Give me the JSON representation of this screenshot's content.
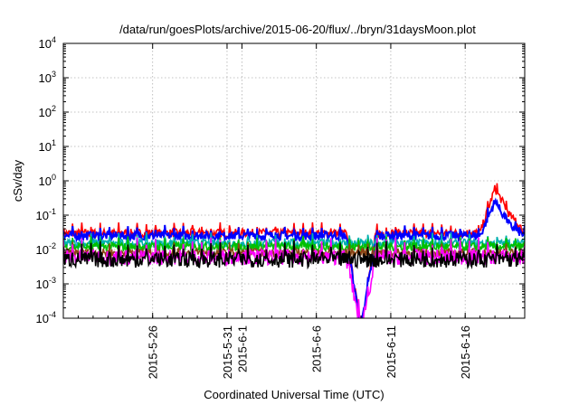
{
  "chart_data": {
    "type": "line",
    "title": "/data/run/goesPlots/archive/2015-06-20/flux/../bryn/31daysMoon.plot",
    "xlabel": "Coordinated Universal Time (UTC)",
    "ylabel": "cSv/day",
    "yscale": "log",
    "ylim": [
      0.0001,
      10000
    ],
    "y_ticks": [
      {
        "value": 0.0001,
        "base": "10",
        "exp": "-4"
      },
      {
        "value": 0.001,
        "base": "10",
        "exp": "-3"
      },
      {
        "value": 0.01,
        "base": "10",
        "exp": "-2"
      },
      {
        "value": 0.1,
        "base": "10",
        "exp": "-1"
      },
      {
        "value": 1,
        "base": "10",
        "exp": "0"
      },
      {
        "value": 10,
        "base": "10",
        "exp": "1"
      },
      {
        "value": 100,
        "base": "10",
        "exp": "2"
      },
      {
        "value": 1000,
        "base": "10",
        "exp": "3"
      },
      {
        "value": 10000,
        "base": "10",
        "exp": "4"
      }
    ],
    "x_date_range": [
      "2015-05-20",
      "2015-06-20"
    ],
    "x_ticks": [
      {
        "date": "2015-05-26",
        "label": "2015-5-26"
      },
      {
        "date": "2015-05-31",
        "label": "2015-5-31"
      },
      {
        "date": "2015-06-01",
        "label": "2015-6-1"
      },
      {
        "date": "2015-06-06",
        "label": "2015-6-6"
      },
      {
        "date": "2015-06-11",
        "label": "2015-6-11"
      },
      {
        "date": "2015-06-16",
        "label": "2015-6-16"
      }
    ],
    "grid": true,
    "data_gap": [
      "2015-06-09",
      "2015-06-10"
    ],
    "series": [
      {
        "color": "#ff0000",
        "values": [
          {
            "date": "2015-05-20",
            "y": 0.03
          },
          {
            "date": "2015-05-25",
            "y": 0.03
          },
          {
            "date": "2015-06-01",
            "y": 0.03
          },
          {
            "date": "2015-06-08",
            "y": 0.03
          },
          {
            "date": "2015-06-09",
            "y": 5e-05
          },
          {
            "date": "2015-06-10",
            "y": 0.03
          },
          {
            "date": "2015-06-17",
            "y": 0.03
          },
          {
            "date": "2015-06-18",
            "y": 0.6
          },
          {
            "date": "2015-06-19",
            "y": 0.1
          },
          {
            "date": "2015-06-20",
            "y": 0.03
          }
        ]
      },
      {
        "color": "#0000ff",
        "values": [
          {
            "date": "2015-05-20",
            "y": 0.025
          },
          {
            "date": "2015-06-08",
            "y": 0.025
          },
          {
            "date": "2015-06-09",
            "y": 5e-05
          },
          {
            "date": "2015-06-10",
            "y": 0.025
          },
          {
            "date": "2015-06-17",
            "y": 0.025
          },
          {
            "date": "2015-06-18",
            "y": 0.25
          },
          {
            "date": "2015-06-19",
            "y": 0.05
          },
          {
            "date": "2015-06-20",
            "y": 0.025
          }
        ]
      },
      {
        "color": "#00b0b0",
        "values": [
          {
            "date": "2015-05-20",
            "y": 0.015
          },
          {
            "date": "2015-06-08",
            "y": 0.015
          },
          {
            "date": "2015-06-10",
            "y": 0.015
          },
          {
            "date": "2015-06-20",
            "y": 0.015
          }
        ]
      },
      {
        "color": "#00c000",
        "values": [
          {
            "date": "2015-05-20",
            "y": 0.012
          },
          {
            "date": "2015-06-08",
            "y": 0.012
          },
          {
            "date": "2015-06-10",
            "y": 0.012
          },
          {
            "date": "2015-06-20",
            "y": 0.012
          }
        ]
      },
      {
        "color": "#8b4513",
        "values": [
          {
            "date": "2015-05-20",
            "y": 0.008
          },
          {
            "date": "2015-06-08",
            "y": 0.008
          },
          {
            "date": "2015-06-10",
            "y": 0.008
          },
          {
            "date": "2015-06-20",
            "y": 0.008
          }
        ]
      },
      {
        "color": "#ff00ff",
        "values": [
          {
            "date": "2015-05-20",
            "y": 0.006
          },
          {
            "date": "2015-06-08",
            "y": 0.006
          },
          {
            "date": "2015-06-09",
            "y": 5e-05
          },
          {
            "date": "2015-06-10",
            "y": 0.006
          },
          {
            "date": "2015-06-20",
            "y": 0.006
          }
        ]
      },
      {
        "color": "#000000",
        "values": [
          {
            "date": "2015-05-20",
            "y": 0.005
          },
          {
            "date": "2015-06-08",
            "y": 0.005
          },
          {
            "date": "2015-06-10",
            "y": 0.005
          },
          {
            "date": "2015-06-20",
            "y": 0.005
          }
        ]
      }
    ]
  }
}
